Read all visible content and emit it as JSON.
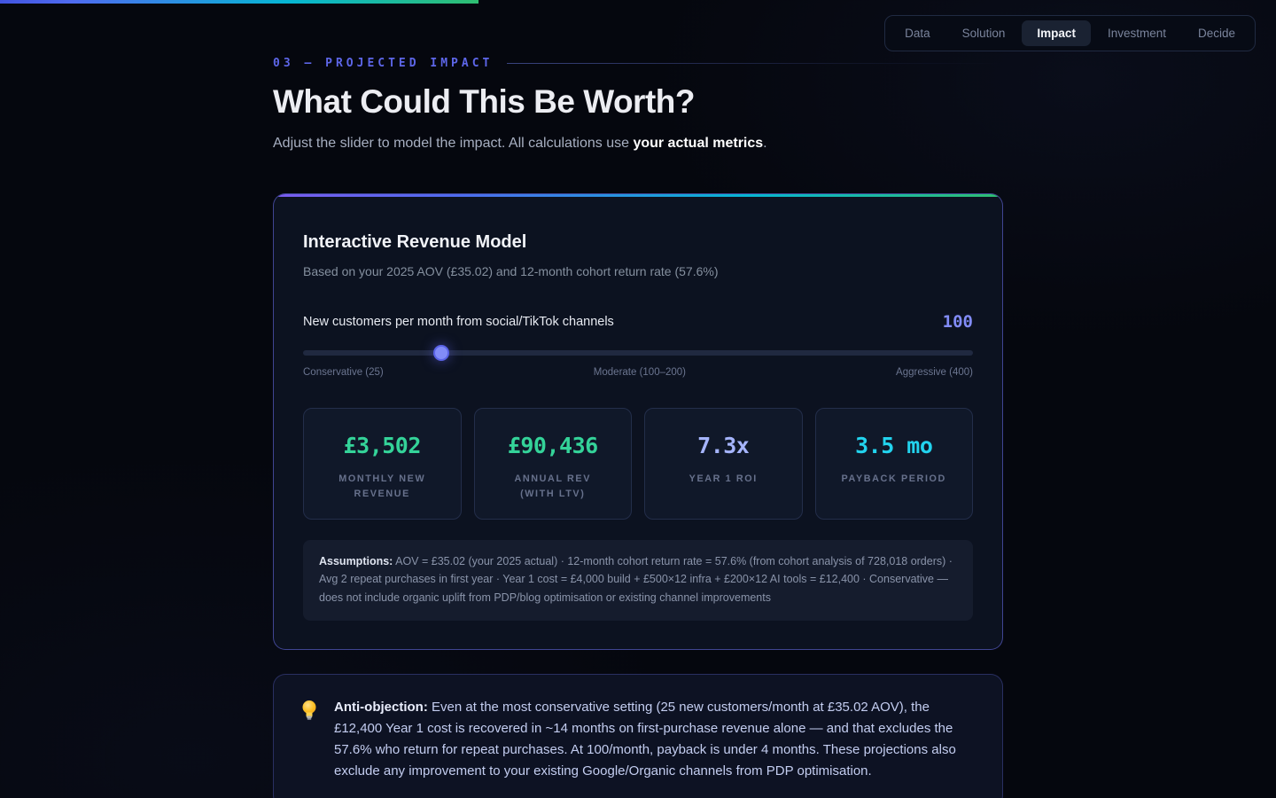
{
  "meta": {
    "progress_percent": 37.5
  },
  "nav": {
    "tabs": [
      {
        "label": "Data",
        "active": false
      },
      {
        "label": "Solution",
        "active": false
      },
      {
        "label": "Impact",
        "active": true
      },
      {
        "label": "Investment",
        "active": false
      },
      {
        "label": "Decide",
        "active": false
      }
    ]
  },
  "header": {
    "eyebrow": "03 — PROJECTED IMPACT",
    "title": "What Could This Be Worth?",
    "subtitle_prefix": "Adjust the slider to model the impact. All calculations use ",
    "subtitle_bold": "your actual metrics",
    "subtitle_suffix": "."
  },
  "model_card": {
    "title": "Interactive Revenue Model",
    "subtitle": "Based on your 2025 AOV (£35.02) and 12-month cohort return rate (57.6%)",
    "slider": {
      "label": "New customers per month from social/TikTok channels",
      "value": "100",
      "percent": 20.7,
      "min_label": "Conservative (25)",
      "mid_label": "Moderate (100–200)",
      "max_label": "Aggressive (400)"
    },
    "stats": [
      {
        "value": "£3,502",
        "label": "MONTHLY NEW REVENUE",
        "color": "#34d399"
      },
      {
        "value": "£90,436",
        "label": "ANNUAL REV (WITH LTV)",
        "color": "#34d399"
      },
      {
        "value": "7.3x",
        "label": "YEAR 1 ROI",
        "color": "#a5b4fc"
      },
      {
        "value": "3.5 mo",
        "label": "PAYBACK PERIOD",
        "color": "#22d3ee"
      }
    ],
    "assumptions_bold": "Assumptions:",
    "assumptions_text": " AOV = £35.02 (your 2025 actual) · 12-month cohort return rate = 57.6% (from cohort analysis of 728,018 orders) · Avg 2 repeat purchases in first year · Year 1 cost = £4,000 build + £500×12 infra + £200×12 AI tools = £12,400 · Conservative — does not include organic uplift from PDP/blog optimisation or existing channel improvements"
  },
  "callout": {
    "bold": "Anti-objection:",
    "text": " Even at the most conservative setting (25 new customers/month at £35.02 AOV), the £12,400 Year 1 cost is recovered in ~14 months on first-purchase revenue alone — and that excludes the 57.6% who return for repeat purchases. At 100/month, payback is under 4 months. These projections also exclude any improvement to your existing Google/Organic channels from PDP optimisation."
  }
}
